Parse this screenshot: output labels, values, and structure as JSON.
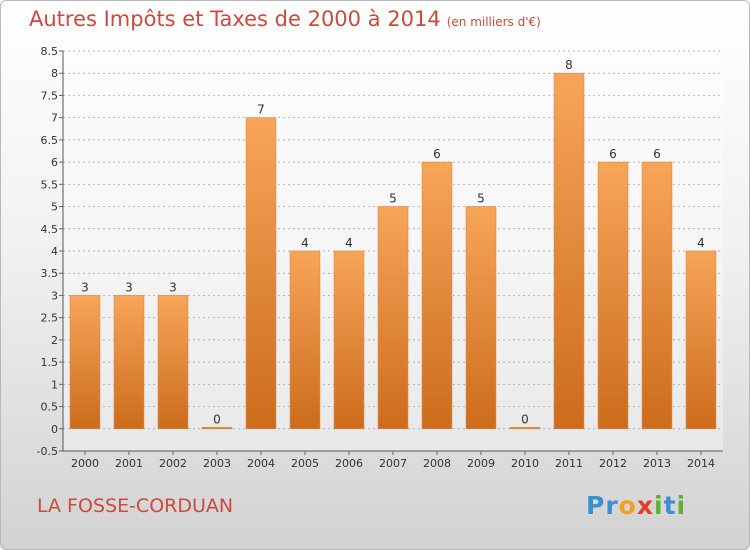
{
  "title": "Autres Impôts et Taxes de 2000 à 2014",
  "subtitle": "(en milliers d'€)",
  "commune": "LA FOSSE-CORDUAN",
  "logo": {
    "letters": [
      "P",
      "r",
      "o",
      "x",
      "i",
      "t",
      "i"
    ],
    "colors": [
      "#3a8fd0",
      "#3a8fd0",
      "#f0a020",
      "#e0402a",
      "#60b030",
      "#3a8fd0",
      "#60b030"
    ]
  },
  "colors": {
    "bar_top": "#f7a55a",
    "bar_bottom": "#cc6c1c",
    "title": "#cc4a3c",
    "grid": "#9a9a9a"
  },
  "chart_data": {
    "type": "bar",
    "categories": [
      "2000",
      "2001",
      "2002",
      "2003",
      "2004",
      "2005",
      "2006",
      "2007",
      "2008",
      "2009",
      "2010",
      "2011",
      "2012",
      "2013",
      "2014"
    ],
    "values": [
      3,
      3,
      3,
      0,
      7,
      4,
      4,
      5,
      6,
      5,
      0,
      8,
      6,
      6,
      4
    ],
    "data_labels": [
      "3",
      "3",
      "3",
      "0",
      "7",
      "4",
      "4",
      "5",
      "6",
      "5",
      "0",
      "8",
      "6",
      "6",
      "4"
    ],
    "y_ticks": [
      "-0.5",
      "0",
      "0.5",
      "1",
      "1.5",
      "2",
      "2.5",
      "3",
      "3.5",
      "4",
      "4.5",
      "5",
      "5.5",
      "6",
      "6.5",
      "7",
      "7.5",
      "8",
      "8.5"
    ],
    "ylim": [
      -0.5,
      8.5
    ],
    "grid": true,
    "xlabel": "",
    "ylabel": ""
  }
}
